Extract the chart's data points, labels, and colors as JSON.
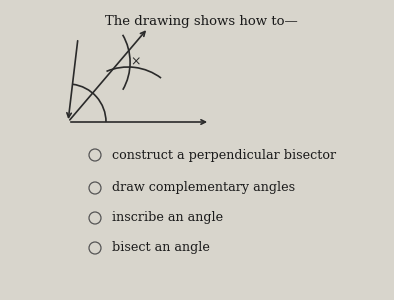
{
  "title": "The drawing shows how to—",
  "bg_color": "#d8d5cc",
  "options": [
    "construct a perpendicular bisector",
    "draw complementary angles",
    "inscribe an angle",
    "bisect an angle"
  ],
  "line_color": "#2a2a2a",
  "text_color": "#1a1a1a",
  "title_fontsize": 9.5,
  "option_fontsize": 9.2,
  "radio_color": "#555555"
}
